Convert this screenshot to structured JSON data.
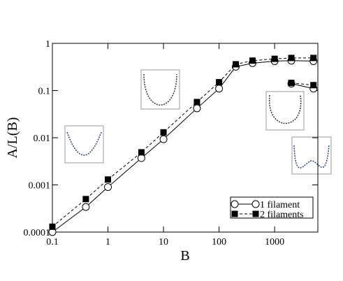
{
  "chart_data": {
    "type": "line",
    "xlabel": "B",
    "ylabel": "A/L(B)",
    "xscale": "log",
    "yscale": "log",
    "xlim": [
      0.1,
      6000
    ],
    "ylim": [
      0.0001,
      1
    ],
    "xticks": [
      0.1,
      1,
      10,
      100,
      1000
    ],
    "yticks": [
      0.0001,
      0.001,
      0.01,
      0.1,
      1
    ],
    "legend": "lower right",
    "series": [
      {
        "name": "1 filament",
        "color": "#000000",
        "marker": "open-circle",
        "dash": false,
        "x": [
          0.1,
          0.4,
          1,
          4,
          10,
          40,
          100,
          200,
          400,
          1000,
          2000,
          5000,
          null,
          2000,
          5000
        ],
        "values": [
          0.0001,
          0.00034,
          0.0009,
          0.0037,
          0.0093,
          0.042,
          0.11,
          0.32,
          0.38,
          0.42,
          0.43,
          0.42,
          null,
          0.14,
          0.11
        ]
      },
      {
        "name": "2 filaments",
        "color": "#000000",
        "marker": "filled-square",
        "dash": true,
        "x": [
          0.1,
          0.4,
          1,
          4,
          10,
          40,
          100,
          200,
          400,
          1000,
          2000,
          5000,
          null,
          2000,
          5000
        ],
        "values": [
          0.00013,
          0.0005,
          0.0013,
          0.0049,
          0.013,
          0.057,
          0.15,
          0.36,
          0.43,
          0.47,
          0.49,
          0.49,
          null,
          0.145,
          0.13
        ]
      }
    ]
  }
}
